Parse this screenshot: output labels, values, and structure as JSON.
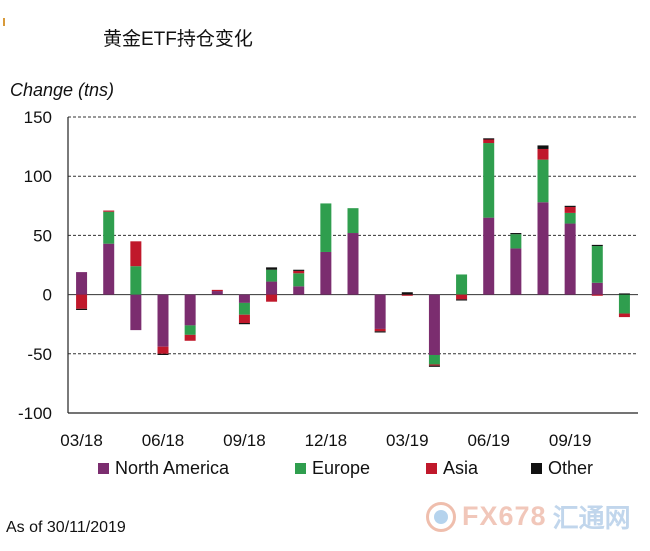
{
  "title": "黄金ETF持仓变化",
  "footnote": "As of 30/11/2019",
  "watermark": {
    "brand": "FX678",
    "cn": "汇通网"
  },
  "colors": {
    "north_america": "#7b2d6f",
    "europe": "#2f9e4e",
    "asia": "#c0182b",
    "other": "#111111"
  },
  "chart_data": {
    "type": "bar",
    "stacked": true,
    "ylabel": "Change (tns)",
    "ylim": [
      -100,
      150
    ],
    "yticks": [
      150,
      100,
      50,
      0,
      -50,
      -100
    ],
    "xtick_labels": [
      "03/18",
      "06/18",
      "09/18",
      "12/18",
      "03/19",
      "06/19",
      "09/19"
    ],
    "xtick_indices": [
      0,
      3,
      6,
      9,
      12,
      15,
      18
    ],
    "categories": [
      "Mar-18",
      "Apr-18",
      "May-18",
      "Jun-18",
      "Jul-18",
      "Aug-18",
      "Sep-18",
      "Oct-18",
      "Nov-18",
      "Dec-18",
      "Jan-19",
      "Feb-19",
      "Mar-19",
      "Apr-19",
      "May-19",
      "Jun-19",
      "Jul-19",
      "Aug-19",
      "Sep-19",
      "Oct-19",
      "Nov-19"
    ],
    "series": [
      {
        "name": "North America",
        "values": [
          19,
          43,
          -30,
          -44,
          -26,
          3,
          -7,
          11,
          7,
          36,
          52,
          -29,
          0,
          -51,
          0,
          65,
          39,
          78,
          60,
          10,
          0
        ]
      },
      {
        "name": "Europe",
        "values": [
          0,
          27,
          24,
          0,
          -8,
          0,
          -10,
          10,
          11,
          41,
          21,
          0,
          0,
          -8,
          17,
          63,
          12,
          36,
          9,
          31,
          -16
        ]
      },
      {
        "name": "Asia",
        "values": [
          -12,
          1,
          21,
          -6,
          -5,
          1,
          -7,
          -6,
          2,
          0,
          0,
          -2,
          -1,
          -1,
          -4,
          3,
          0,
          9,
          5,
          -1,
          -3
        ]
      },
      {
        "name": "Other",
        "values": [
          -1,
          0,
          0,
          -1,
          0,
          0,
          -1,
          2,
          1,
          0,
          0,
          -1,
          2,
          -1,
          -1,
          1,
          1,
          3,
          1,
          1,
          1
        ]
      }
    ],
    "grid": true,
    "legend_position": "bottom"
  }
}
